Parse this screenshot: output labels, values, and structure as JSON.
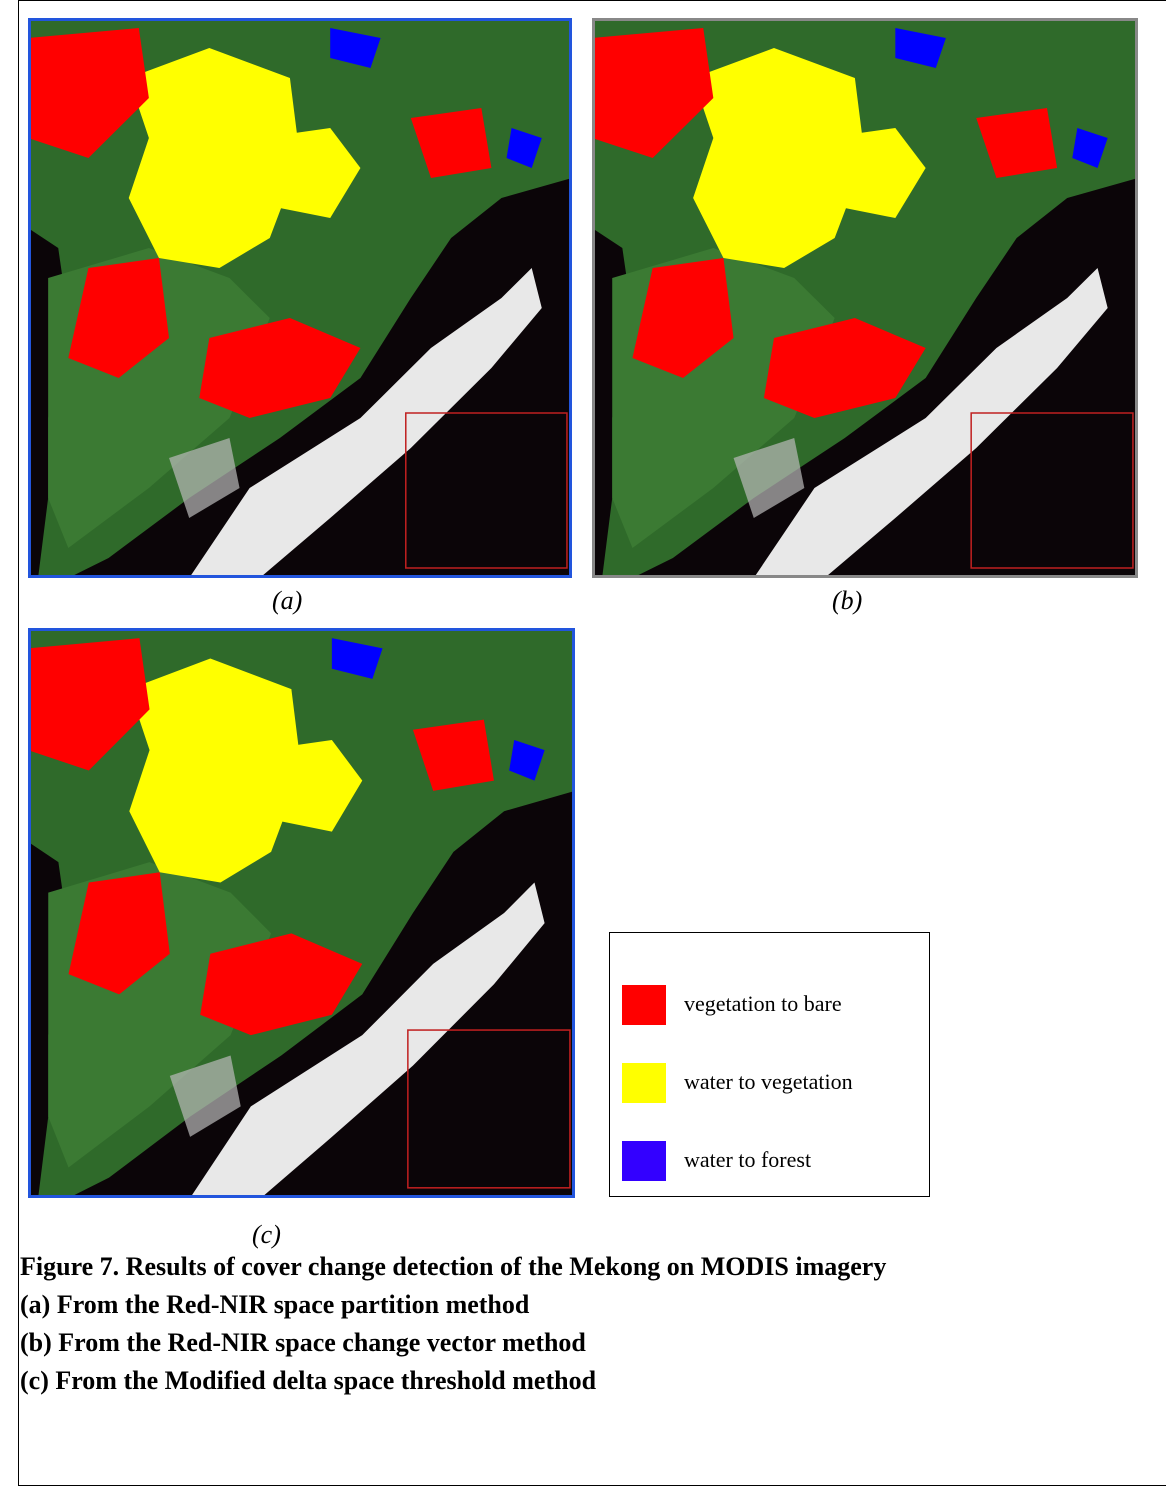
{
  "figure": {
    "panels": [
      {
        "label": "(a)"
      },
      {
        "label": "(b)"
      },
      {
        "label": "(c)"
      }
    ],
    "legend": {
      "items": [
        {
          "label": "vegetation to bare",
          "color": "#ff0000"
        },
        {
          "label": "water to vegetation",
          "color": "#ffff00"
        },
        {
          "label": "water to forest",
          "color": "#3300ff"
        }
      ]
    },
    "caption": {
      "title": "Figure 7.  Results of cover change detection of the Mekong on MODIS imagery",
      "lines": [
        "(a) From the Red-NIR space partition method",
        "(b) From the Red-NIR space change vector method",
        "(c) From the Modified delta space threshold method"
      ]
    }
  }
}
